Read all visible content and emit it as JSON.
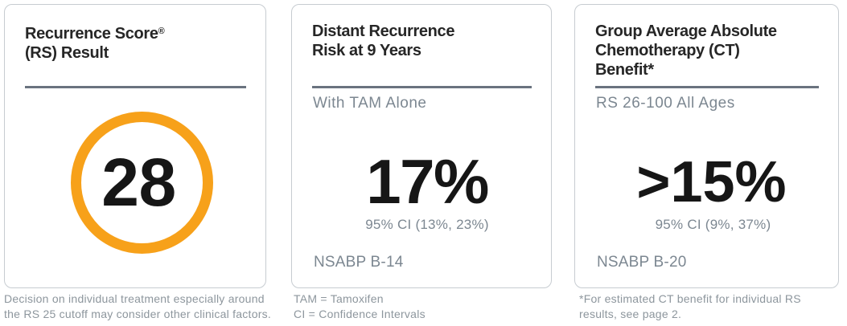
{
  "colors": {
    "title_text": "#262626",
    "number_text": "#161616",
    "rule": "#6a737f",
    "subtle_text": "#7c8791",
    "footnote_text": "#8d969d",
    "card_border": "#c7ccd1",
    "accent_orange": "#f7a11a",
    "background": "#ffffff"
  },
  "cards": {
    "recurrence_score": {
      "title_line1": "Recurrence Score",
      "title_reg_mark": "®",
      "title_line2": "(RS) Result",
      "score_value": "28",
      "footnote_line1": "Decision on individual treatment especially around",
      "footnote_line2": "the RS 25 cutoff may consider other clinical factors."
    },
    "distant_recurrence": {
      "title_line1": "Distant Recurrence",
      "title_line2": "Risk at 9 Years",
      "subtitle": "With TAM Alone",
      "value": "17%",
      "ci": "95% CI (13%, 23%)",
      "study": "NSABP B-14",
      "footnote_line1": "TAM = Tamoxifen",
      "footnote_line2": "CI = Confidence Intervals"
    },
    "chemo_benefit": {
      "title_line1": "Group Average Absolute",
      "title_line2": "Chemotherapy (CT)",
      "title_line3": "Benefit*",
      "subtitle": "RS 26-100 All Ages",
      "value": ">15%",
      "ci": "95% CI (9%, 37%)",
      "study": "NSABP B-20",
      "footnote_line1": "*For estimated CT benefit for individual RS",
      "footnote_line2": "results, see page 2."
    }
  }
}
